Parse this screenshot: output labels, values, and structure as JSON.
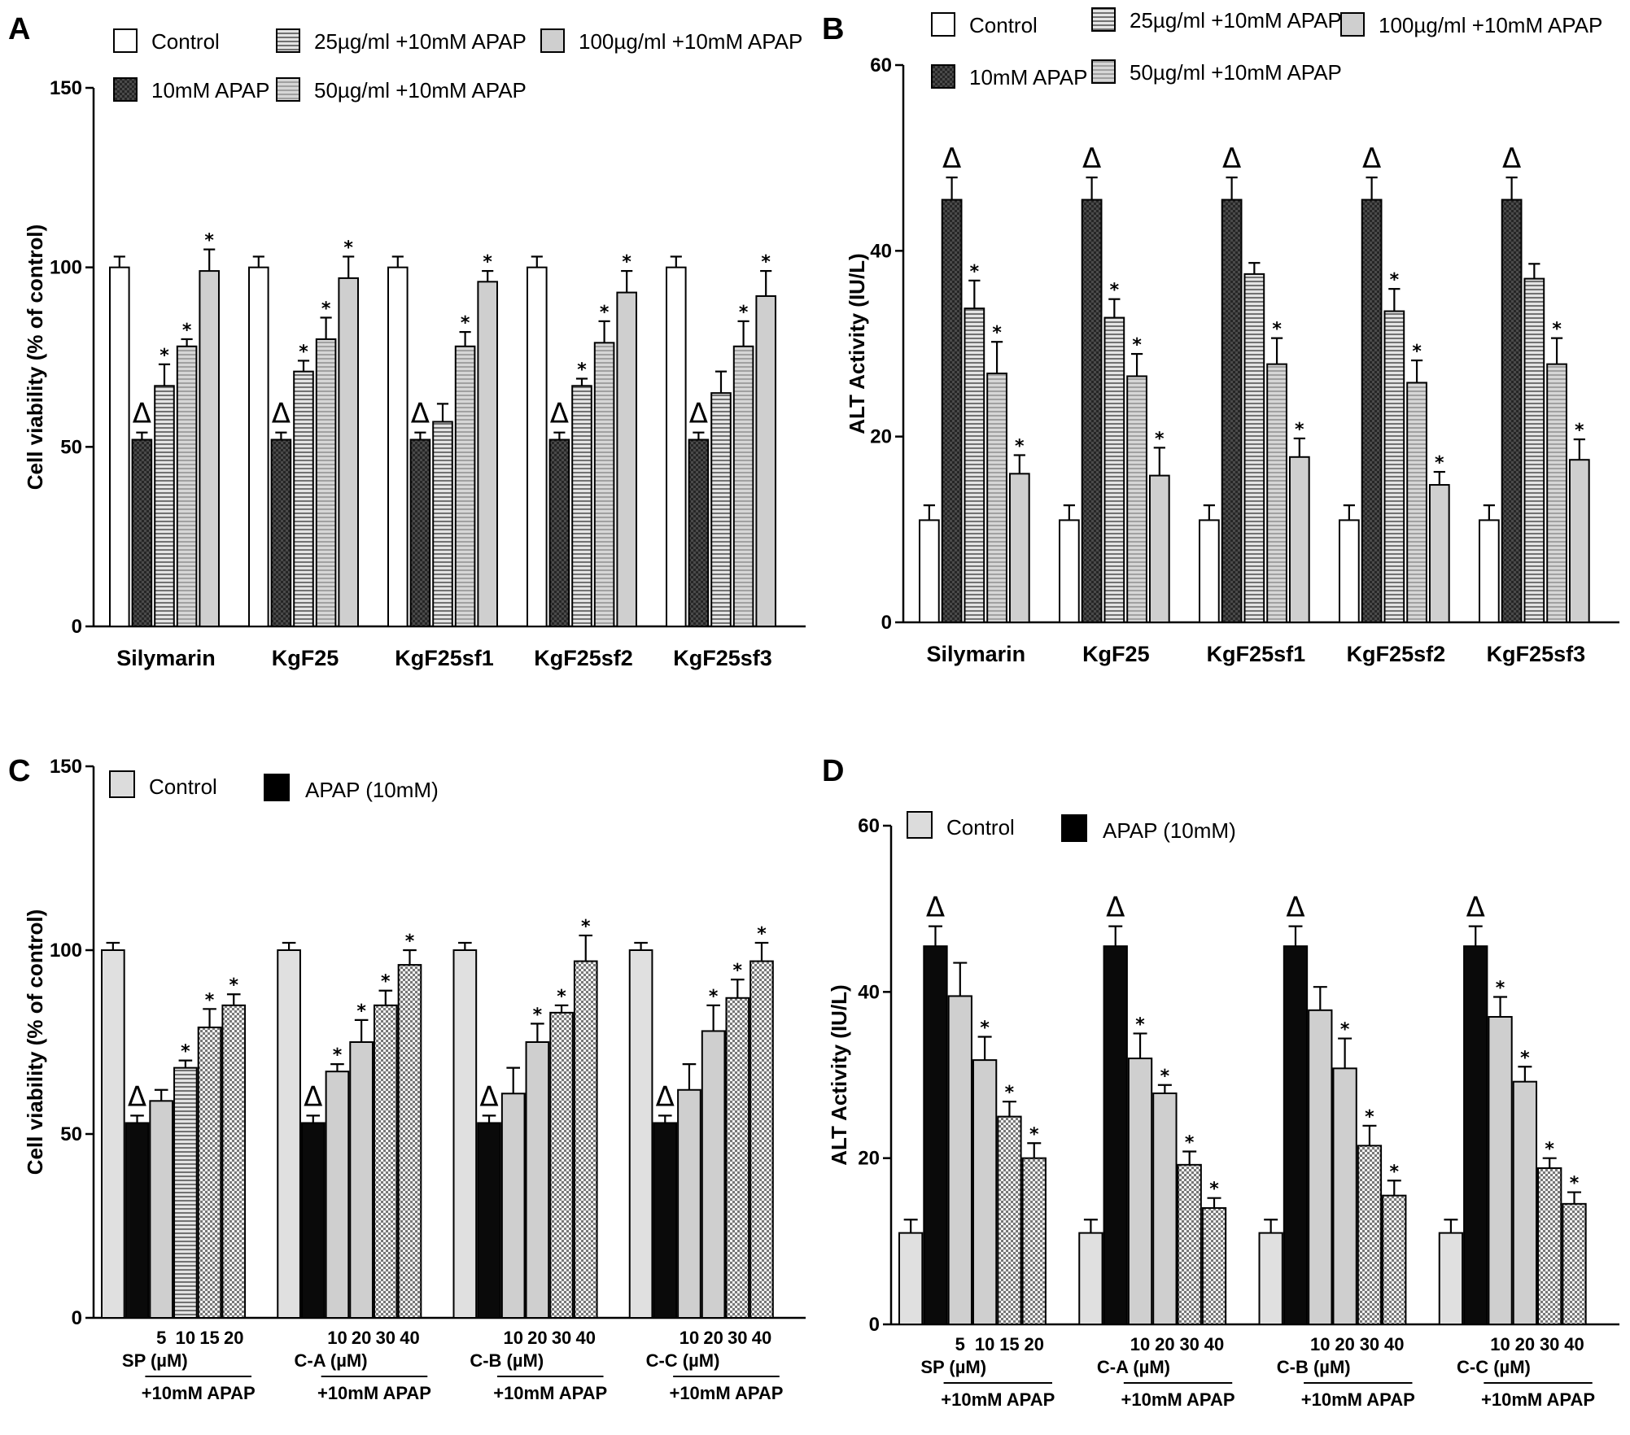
{
  "chart_data": [
    {
      "panel": "A",
      "type": "bar",
      "ylabel": "Cell viability (%  of control)",
      "ylim": [
        0,
        150
      ],
      "yticks": [
        0,
        50,
        100,
        150
      ],
      "categories": [
        "Silymarin",
        "KgF25",
        "KgF25sf1",
        "KgF25sf2",
        "KgF25sf3"
      ],
      "legend": [
        "Control",
        "25µg/ml +10mM APAP",
        "100µg/ml +10mM APAP",
        "10mM APAP",
        "50µg/ml +10mM APAP"
      ],
      "series": [
        {
          "name": "Control",
          "style": "white",
          "values": [
            100,
            100,
            100,
            100,
            100
          ],
          "errors": [
            3,
            3,
            3,
            3,
            3
          ],
          "marks": [
            "",
            "",
            "",
            "",
            ""
          ]
        },
        {
          "name": "10mM APAP",
          "style": "dark",
          "values": [
            52,
            52,
            52,
            52,
            52
          ],
          "errors": [
            2,
            2,
            2,
            2,
            2
          ],
          "marks": [
            "Δ",
            "Δ",
            "Δ",
            "Δ",
            "Δ"
          ]
        },
        {
          "name": "25µg/ml +10mM APAP",
          "style": "hstripe",
          "values": [
            67,
            71,
            57,
            67,
            65
          ],
          "errors": [
            6,
            3,
            5,
            2,
            6
          ],
          "marks": [
            "*",
            "*",
            "",
            "*",
            ""
          ]
        },
        {
          "name": "50µg/ml +10mM APAP",
          "style": "hstripe-light",
          "values": [
            78,
            80,
            78,
            79,
            78
          ],
          "errors": [
            2,
            6,
            4,
            6,
            7
          ],
          "marks": [
            "*",
            "*",
            "*",
            "*",
            "*"
          ]
        },
        {
          "name": "100µg/ml +10mM APAP",
          "style": "gray",
          "values": [
            99,
            97,
            96,
            93,
            92
          ],
          "errors": [
            6,
            6,
            3,
            6,
            7
          ],
          "marks": [
            "*",
            "*",
            "*",
            "*",
            "*"
          ]
        }
      ]
    },
    {
      "panel": "B",
      "type": "bar",
      "ylabel": "ALT Activity (IU/L)",
      "ylim": [
        0,
        60
      ],
      "yticks": [
        0,
        20,
        40,
        60
      ],
      "categories": [
        "Silymarin",
        "KgF25",
        "KgF25sf1",
        "KgF25sf2",
        "KgF25sf3"
      ],
      "legend": [
        "Control",
        "25µg/ml +10mM APAP",
        "100µg/ml +10mM APAP",
        "10mM APAP",
        "50µg/ml +10mM APAP"
      ],
      "series": [
        {
          "name": "Control",
          "style": "white",
          "values": [
            11,
            11,
            11,
            11,
            11
          ],
          "errors": [
            1.6,
            1.6,
            1.6,
            1.6,
            1.6
          ],
          "marks": [
            "",
            "",
            "",
            "",
            ""
          ]
        },
        {
          "name": "10mM APAP",
          "style": "dark",
          "values": [
            45.5,
            45.5,
            45.5,
            45.5,
            45.5
          ],
          "errors": [
            2.4,
            2.4,
            2.4,
            2.4,
            2.4
          ],
          "marks": [
            "Δ",
            "Δ",
            "Δ",
            "Δ",
            "Δ"
          ]
        },
        {
          "name": "25µg/ml +10mM APAP",
          "style": "hstripe",
          "values": [
            33.8,
            32.8,
            37.5,
            33.5,
            37
          ],
          "errors": [
            3,
            2,
            1.2,
            2.4,
            1.6
          ],
          "marks": [
            "*",
            "*",
            "",
            "*",
            ""
          ]
        },
        {
          "name": "50µg/ml +10mM APAP",
          "style": "hstripe-light",
          "values": [
            26.8,
            26.5,
            27.8,
            25.8,
            27.8
          ],
          "errors": [
            3.4,
            2.4,
            2.8,
            2.4,
            2.8
          ],
          "marks": [
            "*",
            "*",
            "*",
            "*",
            "*"
          ]
        },
        {
          "name": "100µg/ml +10mM APAP",
          "style": "gray",
          "values": [
            16,
            15.8,
            17.8,
            14.8,
            17.5
          ],
          "errors": [
            2,
            3,
            2,
            1.4,
            2.2
          ],
          "marks": [
            "*",
            "*",
            "*",
            "*",
            "*"
          ]
        }
      ]
    },
    {
      "panel": "C",
      "type": "bar",
      "ylabel": "Cell viability (%  of control)",
      "ylim": [
        0,
        150
      ],
      "yticks": [
        0,
        50,
        100,
        150
      ],
      "legend": [
        "Control",
        "APAP (10mM)"
      ],
      "footer": "+10mM APAP",
      "groups": [
        {
          "label": "SP (µM)",
          "doses": [
            "5",
            "10",
            "15",
            "20"
          ],
          "control": 100,
          "control_err": 2,
          "apap": 53,
          "apap_err": 2,
          "values": [
            59,
            68,
            79,
            85
          ],
          "errors": [
            3,
            2,
            5,
            3
          ],
          "marks": [
            "",
            "*",
            "*",
            "*"
          ],
          "styles": [
            "gray",
            "hstripe",
            "check",
            "check"
          ]
        },
        {
          "label": "C-A (µM)",
          "doses": [
            "10",
            "20",
            "30",
            "40"
          ],
          "control": 100,
          "control_err": 2,
          "apap": 53,
          "apap_err": 2,
          "values": [
            67,
            75,
            85,
            96
          ],
          "errors": [
            2,
            6,
            4,
            4
          ],
          "marks": [
            "*",
            "*",
            "*",
            "*"
          ],
          "styles": [
            "gray",
            "gray",
            "check",
            "check"
          ]
        },
        {
          "label": "C-B (µM)",
          "doses": [
            "10",
            "20",
            "30",
            "40"
          ],
          "control": 100,
          "control_err": 2,
          "apap": 53,
          "apap_err": 2,
          "values": [
            61,
            75,
            83,
            97
          ],
          "errors": [
            7,
            5,
            2,
            7
          ],
          "marks": [
            "",
            "*",
            "*",
            "*"
          ],
          "styles": [
            "gray",
            "gray",
            "check",
            "check"
          ]
        },
        {
          "label": "C-C (µM)",
          "doses": [
            "10",
            "20",
            "30",
            "40"
          ],
          "control": 100,
          "control_err": 2,
          "apap": 53,
          "apap_err": 2,
          "values": [
            62,
            78,
            87,
            97
          ],
          "errors": [
            7,
            7,
            5,
            5
          ],
          "marks": [
            "",
            "*",
            "*",
            "*"
          ],
          "styles": [
            "gray",
            "gray",
            "check",
            "check"
          ]
        }
      ]
    },
    {
      "panel": "D",
      "type": "bar",
      "ylabel": "ALT Activity (IU/L)",
      "ylim": [
        0,
        60
      ],
      "yticks": [
        0,
        20,
        40,
        60
      ],
      "legend": [
        "Control",
        "APAP (10mM)"
      ],
      "footer": "+10mM APAP",
      "groups": [
        {
          "label": "SP (µM)",
          "doses": [
            "5",
            "10",
            "15",
            "20"
          ],
          "control": 11,
          "control_err": 1.6,
          "apap": 45.5,
          "apap_err": 2.4,
          "values": [
            39.5,
            31.8,
            25,
            20
          ],
          "errors": [
            4,
            2.8,
            1.8,
            1.8
          ],
          "marks": [
            "",
            "*",
            "*",
            "*"
          ],
          "styles": [
            "gray",
            "gray",
            "check",
            "check"
          ]
        },
        {
          "label": "C-A (µM)",
          "doses": [
            "10",
            "20",
            "30",
            "40"
          ],
          "control": 11,
          "control_err": 1.6,
          "apap": 45.5,
          "apap_err": 2.4,
          "values": [
            32,
            27.8,
            19.2,
            14
          ],
          "errors": [
            3,
            1,
            1.6,
            1.2
          ],
          "marks": [
            "*",
            "*",
            "*",
            "*"
          ],
          "styles": [
            "gray",
            "gray",
            "check",
            "check"
          ]
        },
        {
          "label": "C-B (µM)",
          "doses": [
            "10",
            "20",
            "30",
            "40"
          ],
          "control": 11,
          "control_err": 1.6,
          "apap": 45.5,
          "apap_err": 2.4,
          "values": [
            37.8,
            30.8,
            21.5,
            15.5
          ],
          "errors": [
            2.8,
            3.6,
            2.4,
            1.8
          ],
          "marks": [
            "",
            "*",
            "*",
            "*"
          ],
          "styles": [
            "gray",
            "gray",
            "check",
            "check"
          ]
        },
        {
          "label": "C-C (µM)",
          "doses": [
            "10",
            "20",
            "30",
            "40"
          ],
          "control": 11,
          "control_err": 1.6,
          "apap": 45.5,
          "apap_err": 2.4,
          "values": [
            37,
            29.2,
            18.8,
            14.5
          ],
          "errors": [
            2.4,
            1.8,
            1.2,
            1.4
          ],
          "marks": [
            "*",
            "*",
            "*",
            "*"
          ],
          "styles": [
            "gray",
            "gray",
            "check",
            "check"
          ]
        }
      ]
    }
  ]
}
